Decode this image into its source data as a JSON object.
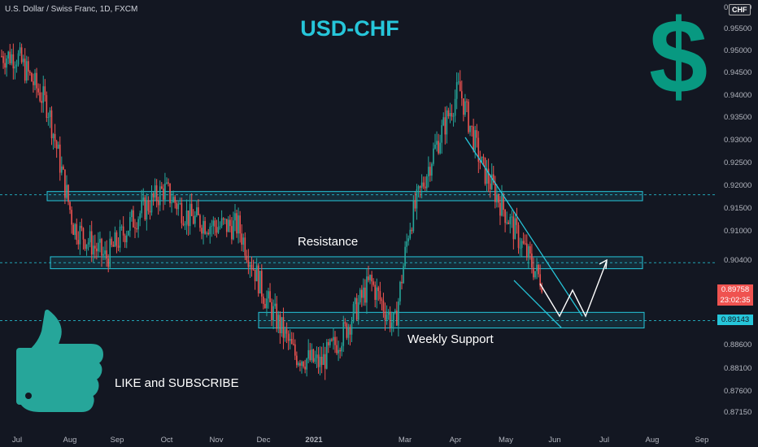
{
  "header": {
    "symbol": "U.S. Dollar / Swiss Franc, 1D, FXCM",
    "title": "USD-CHF",
    "currency": "CHF"
  },
  "annotations": {
    "resistance": "Resistance",
    "support": "Weekly Support",
    "cta": "LIKE and SUBSCRIBE"
  },
  "price_tags": {
    "current": "0.89758",
    "countdown": "23:02:35",
    "support_level": "0.89143"
  },
  "colors": {
    "background": "#131722",
    "bull": "#26a69a",
    "bear": "#ef5350",
    "accent": "#26c6da",
    "dollar": "#089981"
  },
  "icons": [
    "dollar-sign-icon",
    "thumbs-up-icon"
  ],
  "chart_data": {
    "type": "candlestick",
    "title": "USD-CHF",
    "xlabel": "",
    "ylabel": "",
    "x_ticks": [
      "Jul",
      "Aug",
      "Sep",
      "Oct",
      "Nov",
      "Dec",
      "2021",
      "Mar",
      "Apr",
      "May",
      "Jun",
      "Jul",
      "Aug",
      "Sep"
    ],
    "y_ticks": [
      0.9565,
      0.955,
      0.95,
      0.945,
      0.94,
      0.935,
      0.93,
      0.925,
      0.92,
      0.915,
      0.91,
      0.904,
      0.8986,
      0.8914,
      0.886,
      0.881,
      0.876,
      0.8715
    ],
    "ylim": [
      0.8715,
      0.9565
    ],
    "series": [
      {
        "values": [
          {
            "date": "2020-07-01",
            "close": 0.949
          },
          {
            "date": "2020-07-20",
            "close": 0.938
          },
          {
            "date": "2020-08-05",
            "close": 0.912
          },
          {
            "date": "2020-08-25",
            "close": 0.905
          },
          {
            "date": "2020-09-10",
            "close": 0.913
          },
          {
            "date": "2020-09-30",
            "close": 0.92
          },
          {
            "date": "2020-10-15",
            "close": 0.914
          },
          {
            "date": "2020-11-01",
            "close": 0.912
          },
          {
            "date": "2020-11-15",
            "close": 0.912
          },
          {
            "date": "2020-12-01",
            "close": 0.897
          },
          {
            "date": "2020-12-20",
            "close": 0.884
          },
          {
            "date": "2021-01-05",
            "close": 0.882
          },
          {
            "date": "2021-01-20",
            "close": 0.889
          },
          {
            "date": "2021-02-05",
            "close": 0.9
          },
          {
            "date": "2021-02-20",
            "close": 0.89
          },
          {
            "date": "2021-03-01",
            "close": 0.912
          },
          {
            "date": "2021-03-15",
            "close": 0.927
          },
          {
            "date": "2021-04-01",
            "close": 0.942
          },
          {
            "date": "2021-04-15",
            "close": 0.925
          },
          {
            "date": "2021-05-01",
            "close": 0.914
          },
          {
            "date": "2021-05-20",
            "close": 0.901
          },
          {
            "date": "2021-06-05",
            "close": 0.8975
          }
        ]
      }
    ],
    "zones": [
      {
        "label": "",
        "from": 0.9175,
        "to": 0.9195
      },
      {
        "label": "Resistance",
        "from": 0.9027,
        "to": 0.9053
      },
      {
        "label": "Weekly Support",
        "from": 0.8898,
        "to": 0.8932
      }
    ],
    "reference_lines": [
      0.9188,
      0.904,
      0.8914
    ],
    "grid": false,
    "legend": "none"
  }
}
